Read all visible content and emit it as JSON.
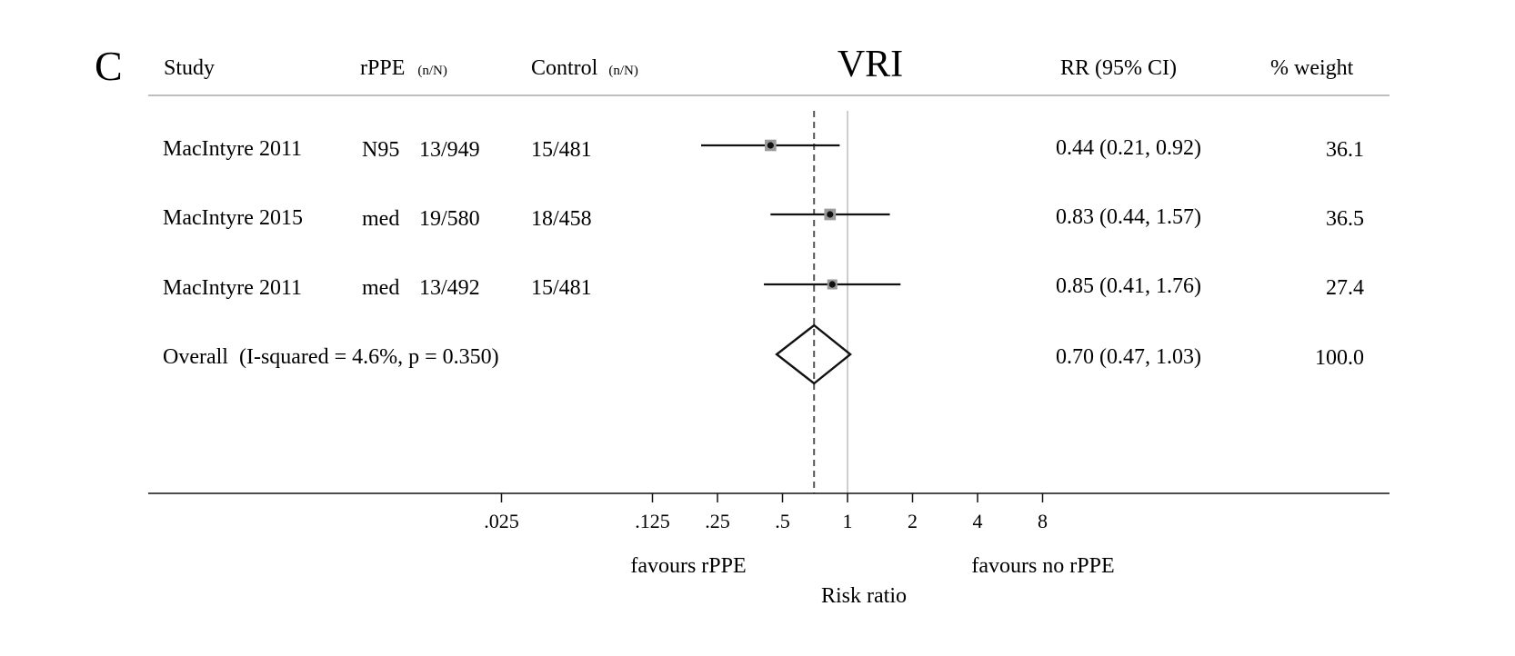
{
  "panel_label": "C",
  "title": "VRI",
  "headers": {
    "study": "Study",
    "rppe": "rPPE",
    "rppe_unit": "(n/N)",
    "control": "Control",
    "control_unit": "(n/N)",
    "rr": "RR (95% CI)",
    "weight": "% weight"
  },
  "rows": [
    {
      "study": "MacIntyre 2011",
      "type": "N95",
      "rppe": "13/949",
      "control": "15/481",
      "rr_text": "0.44 (0.21, 0.92)",
      "weight": "36.1"
    },
    {
      "study": "MacIntyre 2015",
      "type": "med",
      "rppe": "19/580",
      "control": "18/458",
      "rr_text": "0.83 (0.44, 1.57)",
      "weight": "36.5"
    },
    {
      "study": "MacIntyre 2011",
      "type": "med",
      "rppe": "13/492",
      "control": "15/481",
      "rr_text": "0.85 (0.41, 1.76)",
      "weight": "27.4"
    }
  ],
  "overall": {
    "label": "Overall  (I-squared = 4.6%, p = 0.350)",
    "rr_text": "0.70 (0.47, 1.03)",
    "weight": "100.0"
  },
  "axis": {
    "favours_left": "favours rPPE",
    "favours_right": "favours no rPPE",
    "label": "Risk ratio"
  },
  "chart_data": {
    "type": "forest",
    "title": "VRI",
    "xlabel": "Risk ratio",
    "x_scale": "log",
    "reference_line": 1,
    "tick_labels": [
      ".025",
      ".125",
      ".25",
      ".5",
      "1",
      "2",
      "4",
      "8"
    ],
    "ticks": [
      0.025,
      0.125,
      0.25,
      0.5,
      1,
      2,
      4,
      8
    ],
    "series": [
      {
        "name": "MacIntyre 2011",
        "estimate": 0.44,
        "lower": 0.21,
        "upper": 0.92,
        "weight": 36.1
      },
      {
        "name": "MacIntyre 2015",
        "estimate": 0.83,
        "lower": 0.44,
        "upper": 1.57,
        "weight": 36.5
      },
      {
        "name": "MacIntyre 2011",
        "estimate": 0.85,
        "lower": 0.41,
        "upper": 1.76,
        "weight": 27.4
      }
    ],
    "overall": {
      "estimate": 0.7,
      "lower": 0.47,
      "upper": 1.03,
      "weight": 100.0
    }
  },
  "colors": {
    "text": "#111111",
    "rule": "#bfbfbf",
    "ref_line": "#bdbdbd",
    "weight_box": "#9a9a9a",
    "dashed": "#555555"
  }
}
